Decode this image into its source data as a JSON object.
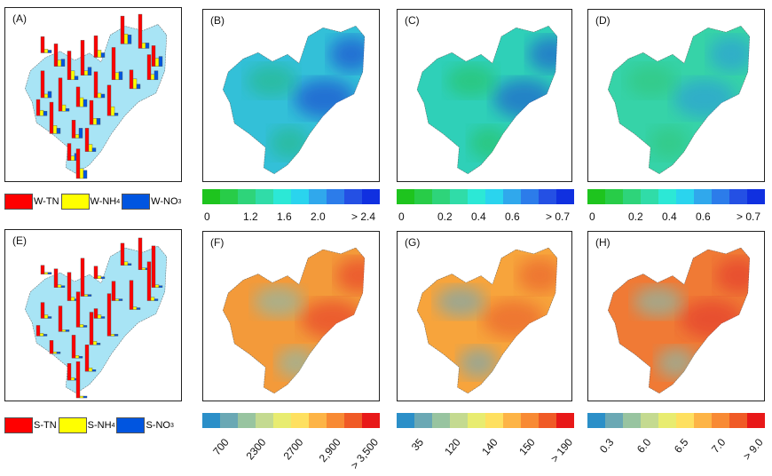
{
  "panels": [
    {
      "id": "A",
      "label": "(A)",
      "type": "bars",
      "base": "#a8e4f5"
    },
    {
      "id": "B",
      "label": "(B)",
      "type": "map",
      "base": "#33c0d8",
      "blobs": [
        [
          "#1a4fd0",
          0.7
        ],
        [
          "#22b870",
          0.5
        ]
      ]
    },
    {
      "id": "C",
      "label": "(C)",
      "type": "map",
      "base": "#2fd0b8",
      "blobs": [
        [
          "#1a4fd0",
          0.6
        ],
        [
          "#25c050",
          0.5
        ]
      ]
    },
    {
      "id": "D",
      "label": "(D)",
      "type": "map",
      "base": "#36d3a8",
      "blobs": [
        [
          "#2a8ae8",
          0.5
        ],
        [
          "#30c060",
          0.4
        ]
      ]
    },
    {
      "id": "E",
      "label": "(E)",
      "type": "bars",
      "base": "#a8e4f5"
    },
    {
      "id": "F",
      "label": "(F)",
      "type": "map",
      "base": "#f39a3a",
      "blobs": [
        [
          "#e8452a",
          0.7
        ],
        [
          "#8fb8a8",
          0.7
        ]
      ]
    },
    {
      "id": "G",
      "label": "(G)",
      "type": "map",
      "base": "#f7a43c",
      "blobs": [
        [
          "#e85a2a",
          0.6
        ],
        [
          "#7aa8b0",
          0.7
        ]
      ]
    },
    {
      "id": "H",
      "label": "(H)",
      "type": "map",
      "base": "#f07a35",
      "blobs": [
        [
          "#e0262a",
          0.5
        ],
        [
          "#8ab8a8",
          0.7
        ]
      ]
    }
  ],
  "legend_water": [
    {
      "label": "W-TN",
      "color": "#ff0000"
    },
    {
      "label": "W-NH",
      "sub": "4",
      "color": "#ffff00"
    },
    {
      "label": "W-NO",
      "sub": "3",
      "color": "#0055e0"
    }
  ],
  "legend_soil": [
    {
      "label": "S-TN",
      "color": "#ff0000"
    },
    {
      "label": "S-NH",
      "sub": "4",
      "color": "#ffff00"
    },
    {
      "label": "S-NO",
      "sub": "3",
      "color": "#0055e0"
    }
  ],
  "colorbar_water": {
    "colors": [
      "#1ec41e",
      "#28cc48",
      "#2ed47a",
      "#30dca8",
      "#2ce8d6",
      "#2ad4ee",
      "#30a8ec",
      "#2c7cea",
      "#2450e4",
      "#1030e0"
    ]
  },
  "colorbar_soil": {
    "colors": [
      "#2b8fc8",
      "#6aa8b4",
      "#98c4a0",
      "#c4da90",
      "#e8ec70",
      "#fee060",
      "#fdb446",
      "#f88a34",
      "#f05a26",
      "#e81818"
    ]
  },
  "scales": {
    "B": [
      "0",
      "1.2",
      "1.6",
      "2.0",
      "> 2.4"
    ],
    "C": [
      "0",
      "0.2",
      "0.4",
      "0.6",
      "> 0.7"
    ],
    "D": [
      "0",
      "0.2",
      "0.4",
      "0.6",
      "> 0.7"
    ],
    "F": [
      "700",
      "2300",
      "2700",
      "2,900",
      "> 3,500"
    ],
    "G": [
      "35",
      "120",
      "140",
      "150",
      "> 190"
    ],
    "H": [
      "0.3",
      "6.0",
      "6.5",
      "7.0",
      "> 9.0"
    ]
  }
}
